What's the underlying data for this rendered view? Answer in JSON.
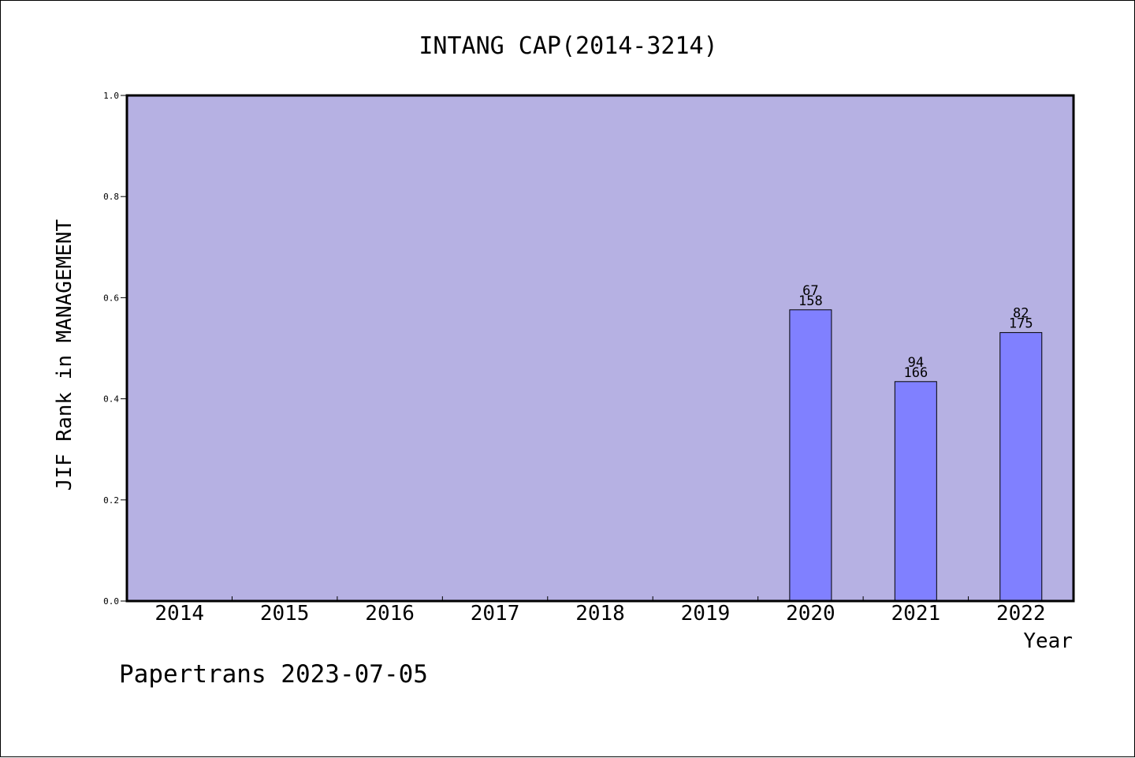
{
  "chart_data": {
    "type": "bar",
    "title": "INTANG CAP(2014-3214)",
    "xlabel": "Year",
    "ylabel": "JIF Rank in MANAGEMENT",
    "categories": [
      "2014",
      "2015",
      "2016",
      "2017",
      "2018",
      "2019",
      "2020",
      "2021",
      "2022"
    ],
    "values": [
      null,
      null,
      null,
      null,
      null,
      null,
      0.576,
      0.434,
      0.531
    ],
    "bar_labels": [
      null,
      null,
      null,
      null,
      null,
      null,
      {
        "rank": "67",
        "total": "158"
      },
      {
        "rank": "94",
        "total": "166"
      },
      {
        "rank": "82",
        "total": "175"
      }
    ],
    "ylim": [
      0,
      1
    ],
    "yticks": [
      0.0,
      0.2,
      0.4,
      0.6,
      0.8,
      1.0
    ],
    "ytick_labels": [
      "0.0",
      "0.2",
      "0.4",
      "0.6",
      "0.8",
      "1.0"
    ],
    "grid": false,
    "legend": "none",
    "colors": {
      "plot_background": "#b6b1e3",
      "bar": "#8080ff",
      "bar_edge": "#000000"
    }
  },
  "footer": {
    "text": "Papertrans 2023-07-05"
  }
}
